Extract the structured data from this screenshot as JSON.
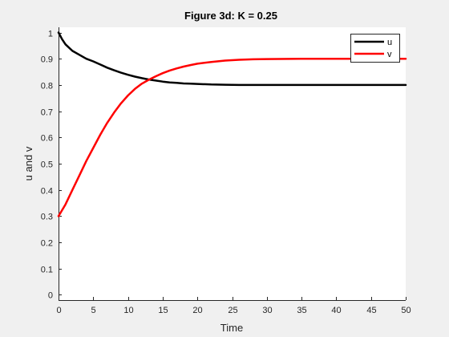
{
  "chart_data": {
    "type": "line",
    "title": "Figure 3d: K = 0.25",
    "xlabel": "Time",
    "ylabel": "u and v",
    "xlim": [
      0,
      50
    ],
    "ylim": [
      -0.02,
      1.02
    ],
    "xticks": [
      0,
      5,
      10,
      15,
      20,
      25,
      30,
      35,
      40,
      45,
      50
    ],
    "yticks": [
      0,
      0.1,
      0.2,
      0.3,
      0.4,
      0.5,
      0.6,
      0.7,
      0.8,
      0.9,
      1
    ],
    "xtick_labels": [
      "0",
      "5",
      "10",
      "15",
      "20",
      "25",
      "30",
      "35",
      "40",
      "45",
      "50"
    ],
    "ytick_labels": [
      "0",
      "0.1",
      "0.2",
      "0.3",
      "0.4",
      "0.5",
      "0.6",
      "0.7",
      "0.8",
      "0.9",
      "1"
    ],
    "grid": false,
    "legend_position": "top-right",
    "series": [
      {
        "name": "u",
        "color": "#000000",
        "x": [
          0,
          0.5,
          1,
          2,
          3,
          4,
          5,
          6,
          7,
          8,
          9,
          10,
          11,
          12,
          13,
          14,
          15,
          16,
          17,
          18,
          19,
          20,
          22,
          24,
          26,
          28,
          30,
          35,
          40,
          45,
          50
        ],
        "values": [
          1.0,
          0.975,
          0.955,
          0.93,
          0.915,
          0.9,
          0.89,
          0.878,
          0.866,
          0.856,
          0.847,
          0.839,
          0.832,
          0.826,
          0.821,
          0.817,
          0.813,
          0.81,
          0.808,
          0.806,
          0.805,
          0.804,
          0.802,
          0.801,
          0.8,
          0.8,
          0.8,
          0.8,
          0.8,
          0.8,
          0.8
        ]
      },
      {
        "name": "v",
        "color": "#ff0000",
        "x": [
          0,
          1,
          2,
          3,
          4,
          5,
          6,
          7,
          8,
          9,
          10,
          11,
          12,
          13,
          14,
          15,
          16,
          17,
          18,
          19,
          20,
          22,
          24,
          26,
          28,
          30,
          35,
          40,
          45,
          50
        ],
        "values": [
          0.3,
          0.345,
          0.4,
          0.455,
          0.51,
          0.56,
          0.61,
          0.655,
          0.695,
          0.73,
          0.76,
          0.785,
          0.805,
          0.82,
          0.833,
          0.845,
          0.855,
          0.863,
          0.87,
          0.876,
          0.881,
          0.888,
          0.893,
          0.896,
          0.898,
          0.899,
          0.9,
          0.9,
          0.9,
          0.9
        ]
      }
    ]
  }
}
